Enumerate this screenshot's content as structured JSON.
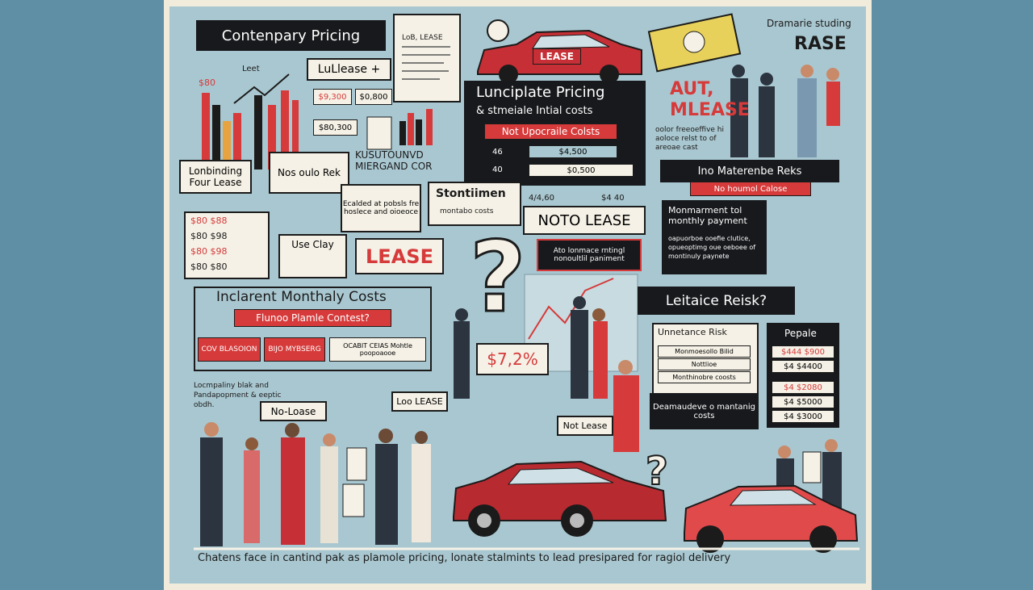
{
  "banner": "Contenpary Pricing",
  "lease_plus": "LuLlease +",
  "chart_labels": [
    "Leet",
    "$80"
  ],
  "price_tags": [
    "$9,300",
    "$0,800",
    "$80,300"
  ],
  "doc_label": "LoB, LEASE",
  "car_sign": "LEASE",
  "cash": {
    "title": "Dramarie studing",
    "word": "RASE"
  },
  "center_panel": {
    "title": "Lunciplate Pricing",
    "subtitle": "& stmeiale Intial costs",
    "tag": "Not Upocraile Colsts",
    "rows": [
      {
        "label": "46",
        "value": "$4,500"
      },
      {
        "label": "40",
        "value": "$0,500"
      }
    ],
    "extra": [
      "4/4,60",
      "$4 40"
    ]
  },
  "aut": {
    "title": "AUT, MLEASE",
    "text": "oolor freeoeffive hi aoloce relst to of areoae cast"
  },
  "left_box": "Lonbinding Four Lease",
  "rek": "Nos oulo Rek",
  "price_table": [
    "$80 $88",
    "$80 $98",
    "$80 $98",
    "$80 $80"
  ],
  "kus": "KUSUTOUNVD MIERGAND COR",
  "note": "Ecalded at pobsls fre hoslece and oioeoce",
  "use_clay": "Use Clay",
  "lease_sign": "LEASE",
  "stont": {
    "title": "Stontiimen",
    "sub": "montabo costs"
  },
  "noto": "NOTO LEASE",
  "ato": "Ato lonmace rntingl nonoultlil paniment",
  "ino": {
    "title": "Ino Materenbe Reks",
    "tag": "No houmol Calose"
  },
  "monmar": {
    "title": "Monmarment tol monthly payment",
    "text": "oapuorboe ooefie clutice, opueoptimg oue oeboee of montinuly paynete"
  },
  "inclarent": {
    "title": "Inclarent Monthaly Costs",
    "tag": "Flunoo Plamle Contest?",
    "buttons": [
      "COV BLASOION",
      "BIJO MYBSERG",
      "OCABIT CEIAS Mohtle poopoaooe"
    ]
  },
  "leitaice": "Leitaice Reisk?",
  "unnet": {
    "title": "Unnetance Risk",
    "rows": [
      "Monmoesollo Bilid",
      "Nottlioe",
      "Monthinobre coosts"
    ]
  },
  "deam": "Deamaudeve o mantanig costs",
  "pepale": {
    "title": "Pepale",
    "rows": [
      "$444 $900",
      "$4 $4400",
      "$4 $2080",
      "$4 $5000",
      "$4 $3000"
    ]
  },
  "rate": "$7,2%",
  "signs": [
    "No-Loase",
    "Loo LEASE",
    "Not Lease"
  ],
  "lomp": "Locmpaliny blak and Pandapopment & eeptic obdh.",
  "caption": "Chatens face in cantind pak as plamole pricing, lonate stalmints to lead presipared for ragiol delivery"
}
